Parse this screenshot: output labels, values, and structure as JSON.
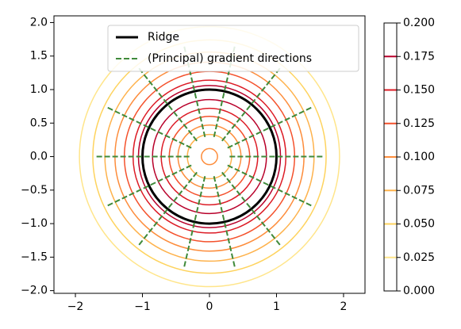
{
  "chart_data": {
    "type": "contour",
    "xlim": [
      -2.32,
      2.32
    ],
    "ylim": [
      -2.04,
      2.1
    ],
    "xticks": [
      {
        "value": -2,
        "label": "−2"
      },
      {
        "value": -1,
        "label": "−1"
      },
      0,
      1,
      2
    ],
    "yticks": [
      {
        "value": -2,
        "label": "−2.0"
      },
      {
        "value": -1.5,
        "label": "−1.5"
      },
      {
        "value": -1,
        "label": "−1.0"
      },
      {
        "value": -0.5,
        "label": "−0.5"
      },
      {
        "value": 0,
        "label": "0.0"
      },
      {
        "value": 0.5,
        "label": "0.5"
      },
      {
        "value": 1,
        "label": "1.0"
      },
      {
        "value": 1.5,
        "label": "1.5"
      },
      {
        "value": 2,
        "label": "2.0"
      }
    ],
    "contours": [
      {
        "level": 0.025,
        "radius": 1.94,
        "color": "#ffe58a"
      },
      {
        "level": 0.05,
        "radius": 1.74,
        "color": "#fed35e"
      },
      {
        "level": 0.075,
        "radius": 1.56,
        "color": "#feb24c"
      },
      {
        "level": 0.1,
        "radius": 1.41,
        "color": "#fd8d3c"
      },
      {
        "level": 0.125,
        "radius": 1.27,
        "color": "#f4512c"
      },
      {
        "level": 0.15,
        "radius": 1.14,
        "color": "#dc1b25"
      },
      {
        "level": 0.175,
        "radius": 1.06,
        "color": "#b8002a"
      },
      {
        "level": 0.175,
        "radius": 0.85,
        "color": "#b8002a"
      },
      {
        "level": 0.15,
        "radius": 0.72,
        "color": "#dc1b25"
      },
      {
        "level": 0.125,
        "radius": 0.6,
        "color": "#f4512c"
      },
      {
        "level": 0.1,
        "radius": 0.47,
        "color": "#fd8d3c"
      },
      {
        "level": 0.075,
        "radius": 0.33,
        "color": "#feb24c"
      },
      {
        "level": 0.1,
        "radius": 0.12,
        "color": "#fd8d3c"
      }
    ],
    "ridge": {
      "name": "Ridge",
      "radius": 1,
      "color": "#000000"
    },
    "gradient": {
      "name": "(Principal) gradient directions",
      "color": "#3f8a3a",
      "angles": [
        0,
        25.7,
        51.4,
        77.1,
        102.9,
        128.6,
        154.3,
        180,
        205.7,
        231.4,
        257.1,
        282.9,
        308.6,
        334.3
      ],
      "r_inner": 0.3,
      "r_outer": 1.7
    },
    "legend": "upper center",
    "colorbar": {
      "lim": [
        0,
        0.2
      ],
      "ticks": [
        {
          "value": 0,
          "label": "0.000"
        },
        {
          "value": 0.025,
          "label": "0.025"
        },
        {
          "value": 0.05,
          "label": "0.050"
        },
        {
          "value": 0.075,
          "label": "0.075"
        },
        {
          "value": 0.1,
          "label": "0.100"
        },
        {
          "value": 0.125,
          "label": "0.125"
        },
        {
          "value": 0.15,
          "label": "0.150"
        },
        {
          "value": 0.175,
          "label": "0.175"
        },
        {
          "value": 0.2,
          "label": "0.200"
        }
      ]
    }
  }
}
